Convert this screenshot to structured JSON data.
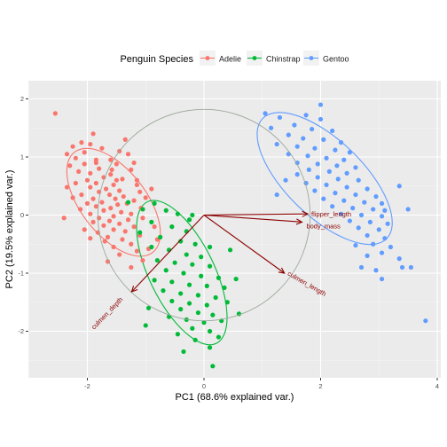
{
  "chart_data": {
    "type": "scatter",
    "title": "",
    "xlabel": "PC1 (68.6% explained var.)",
    "ylabel": "PC2 (19.5% explained var.)",
    "xlim": [
      -3.05,
      4.0
    ],
    "ylim": [
      -2.85,
      2.3
    ],
    "x_ticks": [
      -2,
      0,
      2,
      4
    ],
    "y_ticks": [
      -2,
      -1,
      0,
      1,
      2
    ],
    "grid": true,
    "legend": {
      "title": "Penguin Species",
      "position": "top",
      "entries": [
        "Adelie",
        "Chinstrap",
        "Gentoo"
      ]
    },
    "colors": {
      "Adelie": "#F8766D",
      "Chinstrap": "#00BA38",
      "Gentoo": "#619CFF",
      "arrows": "#8B0000",
      "circle": "#9aa89a",
      "panel": "#EBEBEB"
    },
    "correlation_circle": {
      "center": [
        0,
        0
      ],
      "radius": 1.82
    },
    "loadings": [
      {
        "name": "flipper_length",
        "x": 1.78,
        "y": 0.02
      },
      {
        "name": "body_mass",
        "x": 1.68,
        "y": -0.12
      },
      {
        "name": "culmen_length",
        "x": 1.38,
        "y": -1.0
      },
      {
        "name": "culmen_depth",
        "x": -1.24,
        "y": -1.32
      }
    ],
    "ellipses": [
      {
        "series": "Adelie",
        "center": [
          -1.55,
          0.22
        ],
        "rx": 1.09,
        "ry": 0.56,
        "angle": 52
      },
      {
        "series": "Chinstrap",
        "center": [
          -0.38,
          -0.99
        ],
        "rx": 1.35,
        "ry": 0.56,
        "angle": 64
      },
      {
        "series": "Gentoo",
        "center": [
          2.07,
          0.63
        ],
        "rx": 1.48,
        "ry": 0.66,
        "angle": 44
      }
    ],
    "series": [
      {
        "name": "Adelie",
        "points": [
          [
            -2.55,
            1.75
          ],
          [
            -1.9,
            1.4
          ],
          [
            -2.1,
            1.25
          ],
          [
            -1.95,
            1.22
          ],
          [
            -2.25,
            1.18
          ],
          [
            -1.75,
            1.15
          ],
          [
            -1.45,
            1.1
          ],
          [
            -1.3,
            1.05
          ],
          [
            -2.05,
            1.08
          ],
          [
            -2.35,
            1.05
          ],
          [
            -2.2,
            0.98
          ],
          [
            -1.6,
            0.95
          ],
          [
            -1.85,
            0.9
          ],
          [
            -2.05,
            0.88
          ],
          [
            -1.5,
            0.88
          ],
          [
            -2.3,
            0.85
          ],
          [
            -1.8,
            0.8
          ],
          [
            -1.25,
            0.78
          ],
          [
            -2.15,
            0.75
          ],
          [
            -1.95,
            0.72
          ],
          [
            -1.6,
            0.7
          ],
          [
            -1.72,
            0.65
          ],
          [
            -2.0,
            0.6
          ],
          [
            -1.4,
            0.62
          ],
          [
            -1.85,
            0.55
          ],
          [
            -2.2,
            0.55
          ],
          [
            -1.55,
            0.52
          ],
          [
            -1.15,
            0.52
          ],
          [
            -1.95,
            0.48
          ],
          [
            -1.68,
            0.45
          ],
          [
            -1.45,
            0.42
          ],
          [
            -2.35,
            0.48
          ],
          [
            -1.8,
            0.4
          ],
          [
            -1.1,
            0.4
          ],
          [
            -1.62,
            0.35
          ],
          [
            -2.1,
            0.35
          ],
          [
            -1.38,
            0.32
          ],
          [
            -1.9,
            0.28
          ],
          [
            -1.52,
            0.28
          ],
          [
            -1.2,
            0.25
          ],
          [
            -1.75,
            0.22
          ],
          [
            -2.0,
            0.2
          ],
          [
            -1.48,
            0.18
          ],
          [
            -1.32,
            0.2
          ],
          [
            -1.85,
            0.15
          ],
          [
            -1.6,
            0.12
          ],
          [
            -1.08,
            0.12
          ],
          [
            -2.12,
            0.1
          ],
          [
            -1.72,
            0.08
          ],
          [
            -1.42,
            0.05
          ],
          [
            -1.25,
            0.02
          ],
          [
            -1.95,
            0.02
          ],
          [
            -1.55,
            -0.02
          ],
          [
            -1.8,
            -0.05
          ],
          [
            -1.3,
            -0.08
          ],
          [
            -1.62,
            -0.1
          ],
          [
            -1.05,
            -0.05
          ],
          [
            -1.9,
            -0.12
          ],
          [
            -1.45,
            -0.15
          ],
          [
            -1.72,
            -0.18
          ],
          [
            -1.2,
            -0.2
          ],
          [
            -1.55,
            -0.25
          ],
          [
            -1.35,
            -0.28
          ],
          [
            -1.82,
            -0.3
          ],
          [
            -1.1,
            -0.35
          ],
          [
            -1.65,
            -0.38
          ],
          [
            -1.4,
            -0.42
          ],
          [
            -1.25,
            -0.5
          ],
          [
            -1.55,
            -0.55
          ],
          [
            -1.15,
            -0.62
          ],
          [
            -1.45,
            -0.68
          ],
          [
            -0.95,
            -0.58
          ],
          [
            -1.05,
            -0.78
          ],
          [
            -1.7,
            -0.45
          ],
          [
            -2.4,
            -0.05
          ],
          [
            -1.5,
            0.6
          ],
          [
            -1.2,
            0.9
          ],
          [
            -2.25,
            0.3
          ],
          [
            -1.0,
            0.3
          ],
          [
            -1.65,
            -0.8
          ],
          [
            -1.35,
            1.3
          ],
          [
            -0.9,
            0.45
          ],
          [
            -1.25,
            -0.9
          ],
          [
            -2.05,
            -0.25
          ],
          [
            -1.85,
            0.95
          ],
          [
            -0.85,
            -0.2
          ],
          [
            -1.58,
            0.78
          ],
          [
            -1.95,
            -0.4
          ],
          [
            -1.15,
            0.6
          ],
          [
            -0.8,
            -0.42
          ]
        ]
      },
      {
        "name": "Chinstrap",
        "points": [
          [
            -1.3,
            0.22
          ],
          [
            -1.05,
            0.1
          ],
          [
            -0.85,
            0.2
          ],
          [
            -0.65,
            0.08
          ],
          [
            -0.45,
            0.02
          ],
          [
            -0.25,
            -0.08
          ],
          [
            -0.9,
            -0.12
          ],
          [
            -0.55,
            -0.2
          ],
          [
            -0.3,
            -0.28
          ],
          [
            -1.1,
            -0.3
          ],
          [
            -0.75,
            -0.38
          ],
          [
            -0.4,
            -0.45
          ],
          [
            -0.15,
            -0.5
          ],
          [
            -0.9,
            -0.55
          ],
          [
            -0.6,
            -0.6
          ],
          [
            -0.3,
            -0.68
          ],
          [
            -0.05,
            -0.72
          ],
          [
            -0.8,
            -0.78
          ],
          [
            -0.5,
            -0.82
          ],
          [
            -0.2,
            -0.85
          ],
          [
            0.1,
            -0.88
          ],
          [
            -0.65,
            -0.95
          ],
          [
            -0.35,
            -1.0
          ],
          [
            -0.05,
            -1.05
          ],
          [
            0.25,
            -1.08
          ],
          [
            -0.85,
            -1.12
          ],
          [
            -0.55,
            -1.15
          ],
          [
            -0.25,
            -1.2
          ],
          [
            0.05,
            -1.22
          ],
          [
            0.35,
            -1.25
          ],
          [
            -0.7,
            -1.3
          ],
          [
            -0.4,
            -1.35
          ],
          [
            -0.1,
            -1.38
          ],
          [
            0.2,
            -1.42
          ],
          [
            -0.55,
            -1.48
          ],
          [
            -0.25,
            -1.52
          ],
          [
            0.05,
            -1.55
          ],
          [
            0.4,
            -1.5
          ],
          [
            -0.4,
            -1.62
          ],
          [
            -0.1,
            -1.68
          ],
          [
            0.15,
            -1.72
          ],
          [
            -0.6,
            -1.75
          ],
          [
            -0.3,
            -1.8
          ],
          [
            0.0,
            -1.85
          ],
          [
            0.3,
            -1.82
          ],
          [
            -0.2,
            -1.95
          ],
          [
            0.1,
            -2.0
          ],
          [
            -0.45,
            -2.05
          ],
          [
            0.25,
            -2.1
          ],
          [
            -0.15,
            -2.15
          ],
          [
            0.1,
            -2.28
          ],
          [
            0.15,
            -2.6
          ],
          [
            -0.35,
            -2.35
          ],
          [
            0.55,
            -1.1
          ],
          [
            -0.95,
            -1.6
          ],
          [
            0.45,
            -0.6
          ],
          [
            -0.2,
            0.0
          ],
          [
            -1.0,
            -1.9
          ],
          [
            0.6,
            -1.7
          ],
          [
            0.1,
            -0.55
          ]
        ]
      },
      {
        "name": "Gentoo",
        "points": [
          [
            1.05,
            1.75
          ],
          [
            1.3,
            1.68
          ],
          [
            1.75,
            1.72
          ],
          [
            2.0,
            1.65
          ],
          [
            1.55,
            1.55
          ],
          [
            1.15,
            1.5
          ],
          [
            1.85,
            1.48
          ],
          [
            2.2,
            1.45
          ],
          [
            1.45,
            1.38
          ],
          [
            1.7,
            1.32
          ],
          [
            2.05,
            1.3
          ],
          [
            2.35,
            1.25
          ],
          [
            1.25,
            1.22
          ],
          [
            1.6,
            1.18
          ],
          [
            1.9,
            1.15
          ],
          [
            2.25,
            1.12
          ],
          [
            2.5,
            1.08
          ],
          [
            1.45,
            1.05
          ],
          [
            1.78,
            1.02
          ],
          [
            2.1,
            0.98
          ],
          [
            2.4,
            0.95
          ],
          [
            1.6,
            0.9
          ],
          [
            1.95,
            0.88
          ],
          [
            2.28,
            0.85
          ],
          [
            2.6,
            0.82
          ],
          [
            1.8,
            0.78
          ],
          [
            2.15,
            0.75
          ],
          [
            2.45,
            0.72
          ],
          [
            1.6,
            0.7
          ],
          [
            1.95,
            0.65
          ],
          [
            2.3,
            0.62
          ],
          [
            2.65,
            0.6
          ],
          [
            1.75,
            0.55
          ],
          [
            2.1,
            0.52
          ],
          [
            2.45,
            0.48
          ],
          [
            2.8,
            0.45
          ],
          [
            1.9,
            0.42
          ],
          [
            2.25,
            0.38
          ],
          [
            2.6,
            0.35
          ],
          [
            2.95,
            0.32
          ],
          [
            2.05,
            0.28
          ],
          [
            2.4,
            0.25
          ],
          [
            2.75,
            0.22
          ],
          [
            3.05,
            0.2
          ],
          [
            2.2,
            0.15
          ],
          [
            2.55,
            0.12
          ],
          [
            2.9,
            0.1
          ],
          [
            3.1,
            0.08
          ],
          [
            2.35,
            0.02
          ],
          [
            2.7,
            0.0
          ],
          [
            3.05,
            -0.02
          ],
          [
            2.5,
            -0.1
          ],
          [
            2.85,
            -0.12
          ],
          [
            3.15,
            -0.15
          ],
          [
            2.65,
            -0.22
          ],
          [
            3.0,
            -0.25
          ],
          [
            2.8,
            -0.35
          ],
          [
            3.1,
            -0.4
          ],
          [
            2.9,
            -0.5
          ],
          [
            3.2,
            -0.55
          ],
          [
            2.6,
            -0.52
          ],
          [
            3.05,
            -0.65
          ],
          [
            2.8,
            -0.7
          ],
          [
            3.35,
            -0.75
          ],
          [
            2.7,
            -0.9
          ],
          [
            2.95,
            -0.95
          ],
          [
            3.4,
            -0.9
          ],
          [
            3.55,
            -0.9
          ],
          [
            3.05,
            -1.1
          ],
          [
            3.8,
            -1.82
          ],
          [
            1.4,
            0.6
          ],
          [
            1.25,
            0.35
          ],
          [
            3.5,
            0.1
          ],
          [
            2.0,
            1.9
          ],
          [
            3.35,
            0.5
          ]
        ]
      }
    ]
  }
}
